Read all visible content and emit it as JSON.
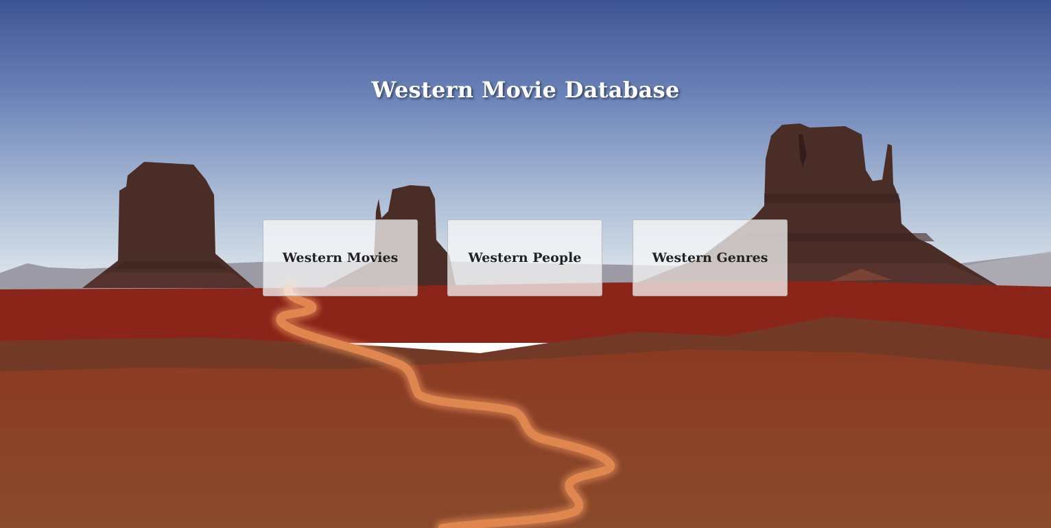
{
  "page": {
    "title": "Western Movie Database"
  },
  "nav": {
    "items": [
      {
        "label": "Western Movies"
      },
      {
        "label": "Western People"
      },
      {
        "label": "Western Genres"
      }
    ]
  },
  "colors": {
    "sky_top": "#3d5494",
    "sky_horizon": "#dfe8ee",
    "mesa": "#4a2c28",
    "desert_red": "#8b251a",
    "desert_floor": "#8a4227",
    "road": "#e0864e",
    "card_bg": "#f5f5f5",
    "card_text": "#222222",
    "title_text": "#ffffff"
  }
}
